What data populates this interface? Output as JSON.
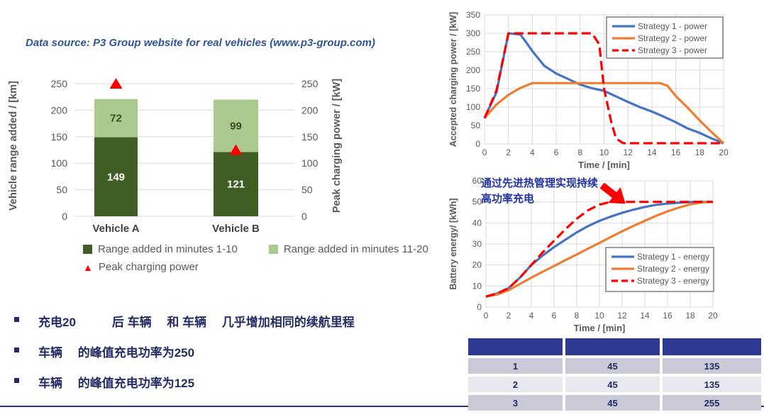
{
  "slide": {
    "data_source_note": "Data source: P3 Group website for real vehicles (www.p3-group.com)",
    "bullets": [
      "充电20　　　后 车辆　 和 车辆　 几乎增加相同的续航里程",
      "车辆　 的峰值充电功率为250",
      "车辆　 的峰值充电功率为125"
    ]
  },
  "colors": {
    "accent_navy": "#242B63",
    "note_blue": "#2F5597",
    "dark_green": "#405D23",
    "light_green": "#A9C98E",
    "red": "#FF0000",
    "blue_line": "#4472C4",
    "orange_line": "#ED7D31",
    "grid_gray": "#D9D9D9",
    "text_gray": "#595959",
    "table_header_navy": "#2E3A92",
    "table_row_dark": "#C9C9D7",
    "table_row_light": "#E9E9F0"
  },
  "chart_data": [
    {
      "type": "bar",
      "categories": [
        "Vehicle A",
        "Vehicle B"
      ],
      "series": [
        {
          "name": "Range added in minutes 1-10",
          "color": "#405D23",
          "values": [
            149,
            121
          ],
          "label_color": "#FFFFFF"
        },
        {
          "name": "Range added in minutes 11-20",
          "color": "#A9C98E",
          "values": [
            72,
            99
          ],
          "label_color": "#3B4A28"
        }
      ],
      "markers": {
        "name": "Peak charging power",
        "color": "#FF0000",
        "values": [
          250,
          125
        ]
      },
      "ylabel": "Vehicle range added / [km]",
      "ylabel_right": "Peak charging power / [kW]",
      "ylim": [
        0,
        250
      ],
      "ytick_step": 50,
      "grid": true,
      "legend_position": "bottom"
    },
    {
      "type": "line",
      "xlabel": "Time / [min]",
      "ylabel": "Accepted charging power / [kW]",
      "xlim": [
        0,
        20
      ],
      "xtick_step": 2,
      "ylim": [
        0,
        350
      ],
      "ytick_step": 50,
      "grid": true,
      "legend_position": "top-right",
      "series": [
        {
          "name": "Strategy 1 - power",
          "color": "#4472C4",
          "dashed": false,
          "points": [
            [
              0,
              70
            ],
            [
              1,
              140
            ],
            [
              2,
              300
            ],
            [
              3,
              297
            ],
            [
              3.5,
              275
            ],
            [
              4,
              252
            ],
            [
              5,
              212
            ],
            [
              6,
              191
            ],
            [
              7,
              176
            ],
            [
              8,
              161
            ],
            [
              9,
              151
            ],
            [
              10,
              144
            ],
            [
              11,
              129
            ],
            [
              12,
              114
            ],
            [
              13,
              100
            ],
            [
              14,
              88
            ],
            [
              15,
              74
            ],
            [
              16,
              59
            ],
            [
              17,
              42
            ],
            [
              18,
              30
            ],
            [
              19,
              15
            ],
            [
              20,
              2
            ]
          ]
        },
        {
          "name": "Strategy 2 - power",
          "color": "#ED7D31",
          "dashed": false,
          "points": [
            [
              0,
              70
            ],
            [
              1,
              107
            ],
            [
              2,
              133
            ],
            [
              3,
              152
            ],
            [
              4,
              165
            ],
            [
              14.7,
              165
            ],
            [
              15.3,
              158
            ],
            [
              16,
              130
            ],
            [
              17,
              98
            ],
            [
              18,
              64
            ],
            [
              19,
              32
            ],
            [
              20,
              2
            ]
          ]
        },
        {
          "name": "Strategy 3 - power",
          "color": "#FF0000",
          "dashed": true,
          "points": [
            [
              0,
              70
            ],
            [
              1,
              145
            ],
            [
              2,
              300
            ],
            [
              9,
              300
            ],
            [
              9.6,
              270
            ],
            [
              10,
              150
            ],
            [
              10.6,
              60
            ],
            [
              11,
              15
            ],
            [
              11.6,
              2
            ],
            [
              20,
              2
            ]
          ]
        }
      ]
    },
    {
      "type": "line",
      "xlabel": "Time / [min]",
      "ylabel": "Battery energy/ [kWh]",
      "xlim": [
        0,
        20
      ],
      "xtick_step": 2,
      "ylim": [
        0,
        60
      ],
      "ytick_step": 10,
      "grid": true,
      "legend_position": "mid-right",
      "annotation": "通过先进热管理实现持续 高功率充电",
      "series": [
        {
          "name": "Strategy 1 - energy",
          "color": "#4472C4",
          "dashed": false,
          "points": [
            [
              0,
              5
            ],
            [
              1,
              6.5
            ],
            [
              2,
              9
            ],
            [
              3,
              14
            ],
            [
              4,
              20
            ],
            [
              5,
              24.5
            ],
            [
              6,
              28.5
            ],
            [
              7,
              32
            ],
            [
              8,
              35.5
            ],
            [
              9,
              38.5
            ],
            [
              10,
              41
            ],
            [
              11,
              43
            ],
            [
              12,
              44.8
            ],
            [
              13,
              46.3
            ],
            [
              14,
              47.6
            ],
            [
              15,
              48.6
            ],
            [
              16,
              49.2
            ],
            [
              17,
              49.6
            ],
            [
              18,
              49.9
            ],
            [
              19,
              50
            ],
            [
              20,
              50
            ]
          ]
        },
        {
          "name": "Strategy 2 - energy",
          "color": "#ED7D31",
          "dashed": false,
          "points": [
            [
              0,
              5
            ],
            [
              1,
              6
            ],
            [
              2,
              8
            ],
            [
              3,
              11
            ],
            [
              4,
              14
            ],
            [
              5,
              16.8
            ],
            [
              6,
              19.5
            ],
            [
              7,
              22.3
            ],
            [
              8,
              25
            ],
            [
              9,
              27.8
            ],
            [
              10,
              30.5
            ],
            [
              11,
              33.3
            ],
            [
              12,
              36
            ],
            [
              13,
              38.6
            ],
            [
              14,
              41
            ],
            [
              15,
              43.4
            ],
            [
              16,
              45.5
            ],
            [
              17,
              47.3
            ],
            [
              18,
              48.8
            ],
            [
              19,
              49.7
            ],
            [
              20,
              50
            ]
          ]
        },
        {
          "name": "Strategy 3 - energy",
          "color": "#FF0000",
          "dashed": true,
          "points": [
            [
              0,
              5
            ],
            [
              1,
              6.5
            ],
            [
              2,
              9
            ],
            [
              3,
              14
            ],
            [
              4,
              20
            ],
            [
              5,
              26
            ],
            [
              6,
              31.5
            ],
            [
              7,
              37
            ],
            [
              8,
              42
            ],
            [
              9,
              46
            ],
            [
              10,
              48.7
            ],
            [
              11,
              50
            ],
            [
              20,
              50
            ]
          ]
        }
      ]
    }
  ],
  "table": {
    "headers": [
      "",
      "",
      ""
    ],
    "rows": [
      [
        "1",
        "45",
        "135"
      ],
      [
        "2",
        "45",
        "135"
      ],
      [
        "3",
        "45",
        "255"
      ]
    ]
  }
}
